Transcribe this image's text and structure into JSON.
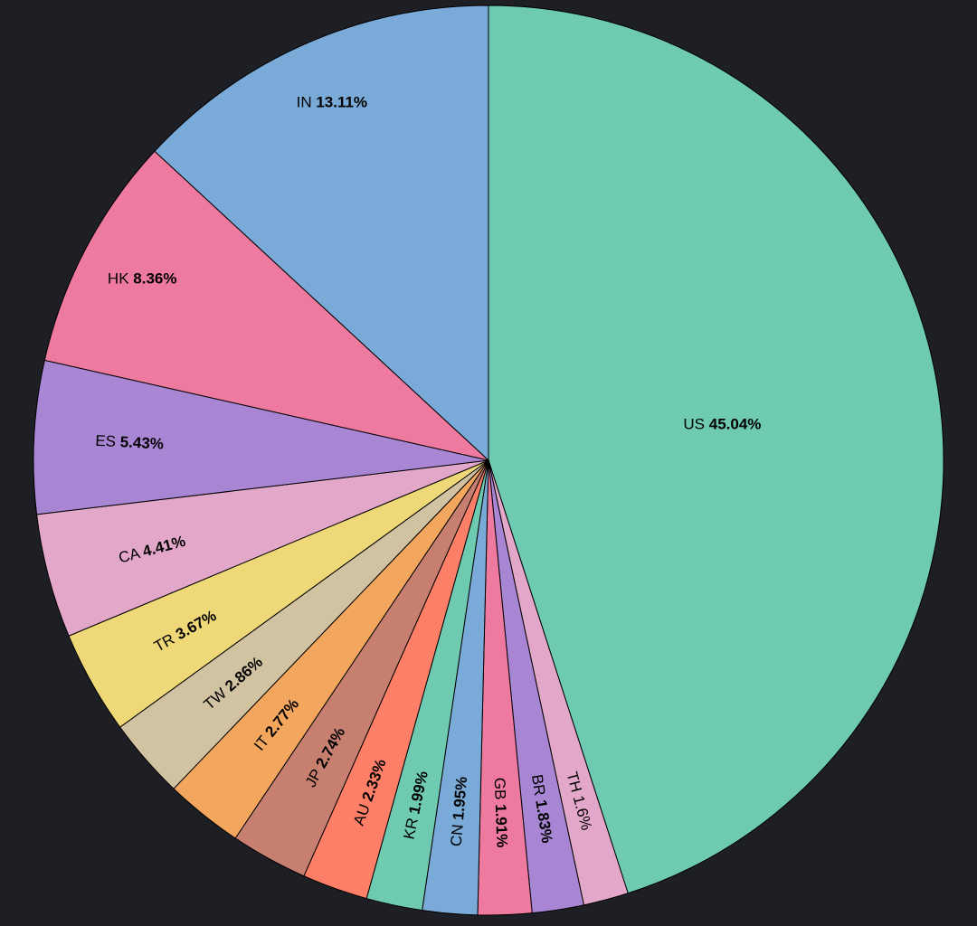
{
  "chart_data": {
    "type": "pie",
    "title": "",
    "start": "12 o'clock",
    "direction": "clockwise",
    "slices": [
      {
        "label": "US",
        "value": 45.04,
        "display": "45.04%",
        "color": "#6ecbb1"
      },
      {
        "label": "TH",
        "value": 1.6,
        "display": "1.6%",
        "color": "#e3a8c9"
      },
      {
        "label": "BR",
        "value": 1.83,
        "display": "1.83%",
        "color": "#a886d4"
      },
      {
        "label": "GB",
        "value": 1.91,
        "display": "1.91%",
        "color": "#ef7a9f"
      },
      {
        "label": "CN",
        "value": 1.95,
        "display": "1.95%",
        "color": "#7aaad8"
      },
      {
        "label": "KR",
        "value": 1.99,
        "display": "1.99%",
        "color": "#6ecbb1"
      },
      {
        "label": "AU",
        "value": 2.33,
        "display": "2.33%",
        "color": "#fe7f67"
      },
      {
        "label": "JP",
        "value": 2.74,
        "display": "2.74%",
        "color": "#c7806f"
      },
      {
        "label": "IT",
        "value": 2.77,
        "display": "2.77%",
        "color": "#f3a65d"
      },
      {
        "label": "TW",
        "value": 2.86,
        "display": "2.86%",
        "color": "#d1c3a1"
      },
      {
        "label": "TR",
        "value": 3.67,
        "display": "3.67%",
        "color": "#efd877"
      },
      {
        "label": "CA",
        "value": 4.41,
        "display": "4.41%",
        "color": "#e3a8c9"
      },
      {
        "label": "ES",
        "value": 5.43,
        "display": "5.43%",
        "color": "#a886d4"
      },
      {
        "label": "HK",
        "value": 8.36,
        "display": "8.36%",
        "color": "#ef7a9f"
      },
      {
        "label": "IN",
        "value": 13.11,
        "display": "13.11%",
        "color": "#7aaad8"
      }
    ]
  }
}
